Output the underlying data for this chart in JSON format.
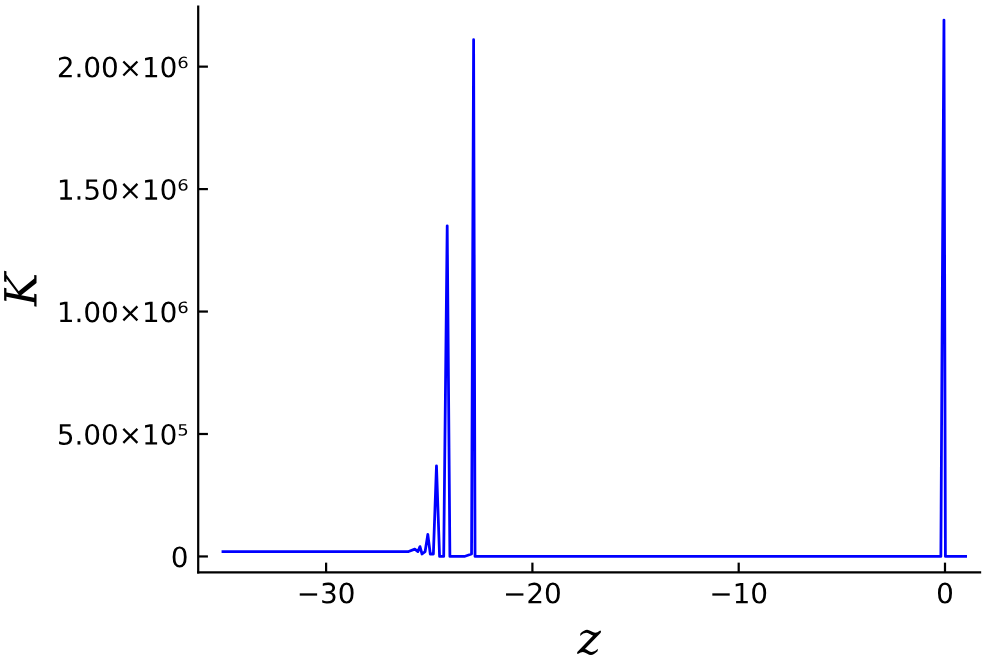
{
  "chart_data": {
    "type": "line",
    "xlabel": "z",
    "ylabel": "K",
    "series": [
      {
        "color": "#0000ff",
        "x": [
          -35,
          -30,
          -27,
          -26,
          -25.7,
          -25.55,
          -25.45,
          -25.35,
          -25.2,
          -25.07,
          -24.95,
          -24.8,
          -24.65,
          -24.5,
          -24.3,
          -24.13,
          -24.0,
          -23.3,
          -22.95,
          -22.9,
          -22.85,
          -22.78,
          -22.6,
          -15,
          -0.5,
          -0.2,
          -0.12,
          -0.05,
          0.02,
          0.1,
          1.0
        ],
        "values": [
          20000,
          20000,
          20000,
          20000,
          30000,
          20000,
          40000,
          10000,
          20000,
          90000,
          10000,
          10000,
          370000,
          0,
          0,
          1350000,
          0,
          0,
          10000,
          1090000,
          2110000,
          0,
          0,
          0,
          0,
          0,
          1220000,
          2190000,
          0,
          0,
          0
        ]
      }
    ],
    "xlim": [
      -36.2,
      1.7
    ],
    "ylim": [
      -65000,
      2245000
    ],
    "xticks": [
      {
        "value": -30,
        "label": "−30"
      },
      {
        "value": -20,
        "label": "−20"
      },
      {
        "value": -10,
        "label": "−10"
      },
      0
    ],
    "yticks": [
      0,
      {
        "value": 500000,
        "label": "5.00×10⁵"
      },
      {
        "value": 1000000,
        "label": "1.00×10⁶"
      },
      {
        "value": 1500000,
        "label": "1.50×10⁶"
      },
      {
        "value": 2000000,
        "label": "2.00×10⁶"
      }
    ],
    "grid": false,
    "legend": false,
    "marker": "none",
    "line_style": "solid"
  }
}
